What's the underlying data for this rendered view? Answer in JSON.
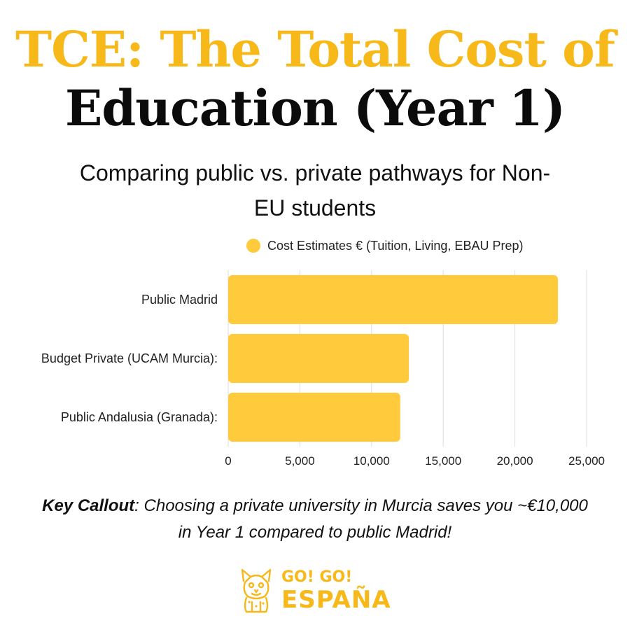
{
  "header": {
    "title_line1": "TCE: The Total Cost of",
    "title_line2": "Education (Year 1)",
    "subtitle": "Comparing public vs. private pathways for Non-EU students"
  },
  "chart_data": {
    "type": "bar",
    "orientation": "horizontal",
    "categories": [
      "Public Madrid",
      "Budget Private (UCAM Murcia):",
      "Public Andalusia (Granada):"
    ],
    "series": [
      {
        "name": "Cost Estimates € (Tuition, Living, EBAU Prep)",
        "values": [
          23000,
          12600,
          12000
        ]
      }
    ],
    "xlim": [
      0,
      25000
    ],
    "xticks": [
      "0",
      "5,000",
      "10,000",
      "15,000",
      "20,000",
      "25,000"
    ],
    "grid": true,
    "legend": "top-right",
    "bar_color": "#FFCB3D"
  },
  "callout": {
    "label": "Key Callout",
    "text": ": Choosing a private university in Murcia saves you ~€10,000 in Year 1 compared to public Madrid!"
  },
  "logo": {
    "line1": "GO! GO!",
    "line2": "ESPAÑA",
    "icon": "lynx-mascot-icon"
  },
  "colors": {
    "title_accent": "#F7B81A",
    "bar": "#FFCB3D"
  }
}
